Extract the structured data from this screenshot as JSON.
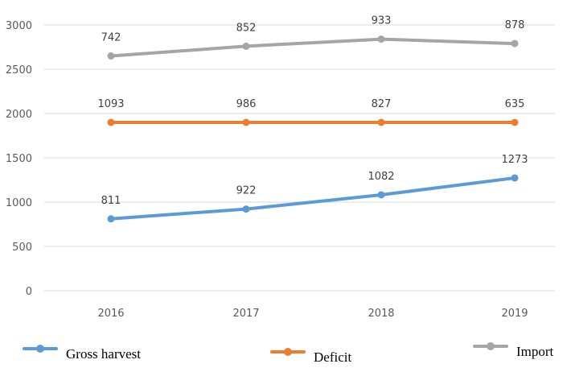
{
  "chart_data": {
    "type": "line",
    "categories": [
      "2016",
      "2017",
      "2018",
      "2019"
    ],
    "series": [
      {
        "name": "Gross harvest",
        "color": "#5b9bd5",
        "values": [
          811,
          922,
          1082,
          1273
        ],
        "labels": [
          "811",
          "922",
          "1082",
          "1273"
        ]
      },
      {
        "name": "Deficit",
        "color": "#ed7d31",
        "values": [
          1900,
          1900,
          1900,
          1900
        ],
        "labels": [
          "1093",
          "986",
          "827",
          "635"
        ]
      },
      {
        "name": "Import",
        "color": "#a5a5a5",
        "values": [
          2650,
          2760,
          2840,
          2790
        ],
        "labels": [
          "742",
          "852",
          "933",
          "878"
        ]
      }
    ],
    "yticks": [
      "0",
      "500",
      "1000",
      "1500",
      "2000",
      "2500",
      "3000"
    ],
    "ylim": [
      0,
      3000
    ],
    "grid": true,
    "legend_position": "bottom"
  }
}
